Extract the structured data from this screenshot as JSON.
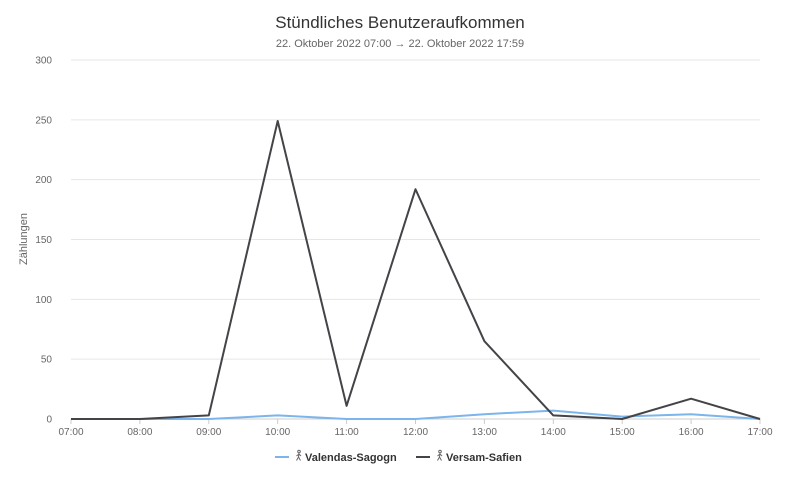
{
  "chart_data": {
    "type": "line",
    "title": "Stündliches Benutzeraufkommen",
    "subtitle": "22. Oktober 2022 07:00 → 22. Oktober 2022 17:59",
    "ylabel": "Zählungen",
    "xlabel": "",
    "ylim": [
      0,
      300
    ],
    "yticks": [
      0,
      50,
      100,
      150,
      200,
      250,
      300
    ],
    "grid": true,
    "legend_position": "bottom",
    "categories": [
      "07:00",
      "08:00",
      "09:00",
      "10:00",
      "11:00",
      "12:00",
      "13:00",
      "14:00",
      "15:00",
      "16:00",
      "17:00"
    ],
    "series": [
      {
        "name": "Valendas-Sagogn",
        "color": "#7cb5ec",
        "icon": "pedestrian-icon",
        "values": [
          0,
          0,
          0,
          3,
          0,
          0,
          4,
          7,
          2,
          4,
          0
        ]
      },
      {
        "name": "Versam-Safien",
        "color": "#434348",
        "icon": "pedestrian-icon",
        "values": [
          0,
          0,
          3,
          249,
          11,
          192,
          65,
          3,
          0,
          17,
          0
        ]
      }
    ]
  }
}
